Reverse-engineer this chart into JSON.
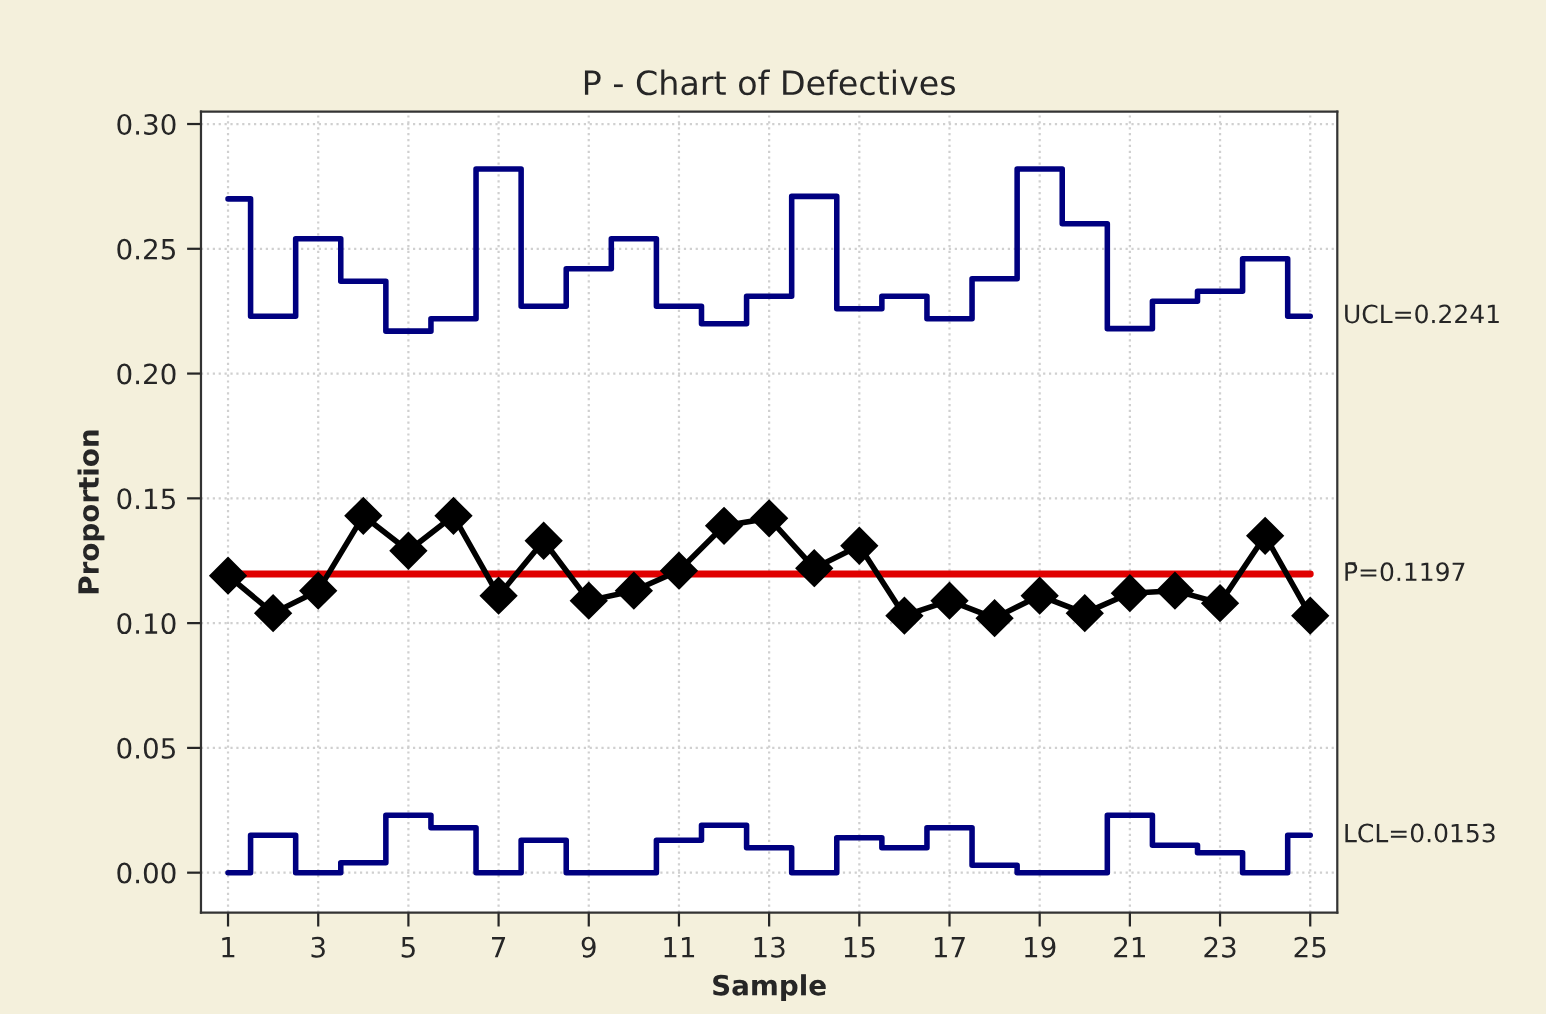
{
  "chart_data": {
    "type": "line",
    "title": "P - Chart of Defectives",
    "xlabel": "Sample",
    "ylabel": "Proportion",
    "x": [
      1,
      2,
      3,
      4,
      5,
      6,
      7,
      8,
      9,
      10,
      11,
      12,
      13,
      14,
      15,
      16,
      17,
      18,
      19,
      20,
      21,
      22,
      23,
      24,
      25
    ],
    "series": [
      {
        "type": "step",
        "name": "UCL=0.2241",
        "color": "#000080",
        "values": [
          0.27,
          0.223,
          0.254,
          0.237,
          0.217,
          0.222,
          0.282,
          0.227,
          0.242,
          0.254,
          0.227,
          0.22,
          0.231,
          0.271,
          0.226,
          0.231,
          0.222,
          0.238,
          0.282,
          0.26,
          0.218,
          0.229,
          0.233,
          0.246,
          0.223
        ]
      },
      {
        "type": "step",
        "name": "LCL=0.0153",
        "color": "#000080",
        "values": [
          0.0,
          0.015,
          0.0,
          0.004,
          0.023,
          0.018,
          0.0,
          0.013,
          0.0,
          0.0,
          0.013,
          0.019,
          0.01,
          0.0,
          0.014,
          0.01,
          0.018,
          0.003,
          0.0,
          0.0,
          0.023,
          0.011,
          0.008,
          0.0,
          0.015
        ]
      },
      {
        "color": "#000000",
        "marker": "diamond",
        "values": [
          0.119,
          0.104,
          0.113,
          0.143,
          0.129,
          0.143,
          0.111,
          0.133,
          0.109,
          0.113,
          0.121,
          0.139,
          0.142,
          0.122,
          0.131,
          0.103,
          0.109,
          0.102,
          0.111,
          0.104,
          0.112,
          0.113,
          0.108,
          0.135,
          0.103
        ]
      }
    ],
    "ref_lines": [
      {
        "axis": "y",
        "value": 0.1197,
        "label": "P̄=0.1197",
        "color": "#e00000"
      }
    ],
    "xlim": [
      0.4,
      25.6
    ],
    "xticks": [
      1,
      3,
      5,
      7,
      9,
      11,
      13,
      15,
      17,
      19,
      21,
      23,
      25
    ],
    "ylim": [
      -0.016,
      0.305
    ],
    "yticks": [
      {
        "value": 0.0,
        "label": "0.00"
      },
      {
        "value": 0.05,
        "label": "0.05"
      },
      {
        "value": 0.1,
        "label": "0.10"
      },
      {
        "value": 0.15,
        "label": "0.15"
      },
      {
        "value": 0.2,
        "label": "0.20"
      },
      {
        "value": 0.25,
        "label": "0.25"
      },
      {
        "value": 0.3,
        "label": "0.30"
      }
    ],
    "grid": true,
    "legend": false
  }
}
